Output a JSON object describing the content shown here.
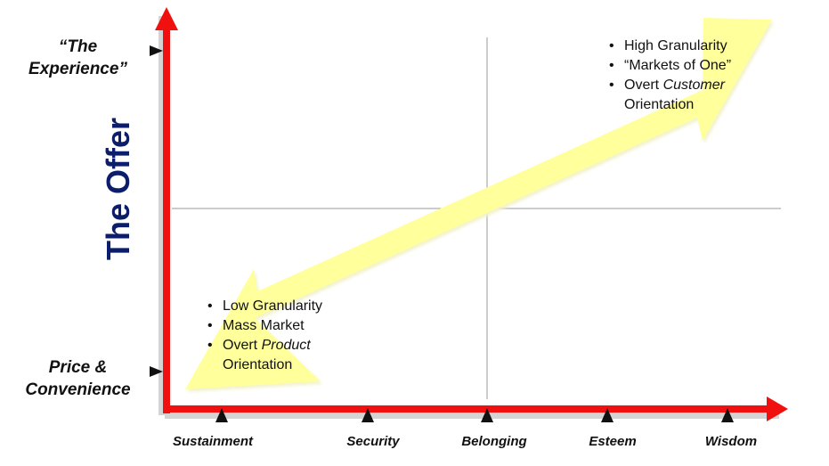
{
  "axis_title": "The Offer",
  "y_levels": {
    "top": [
      "“The",
      "Experience”"
    ],
    "bottom": [
      "Price &",
      "Convenience"
    ]
  },
  "x_levels": [
    "Sustainment",
    "Security",
    "Belonging",
    "Esteem",
    "Wisdom"
  ],
  "top_right_bullets": {
    "b1": "High Granularity",
    "b2": "“Markets of One”",
    "b3_pre": "Overt ",
    "b3_em": "Customer",
    "b3_cont": "Orientation"
  },
  "bottom_left_bullets": {
    "b1": "Low Granularity",
    "b2": "Mass Market",
    "b3_pre": "Overt ",
    "b3_em": "Product",
    "b3_cont": "Orientation"
  },
  "colors": {
    "axis": "#f01010",
    "axis_shadow": "#c8c8c8",
    "arrow_fill": "#ffff9c",
    "arrow_edge": "#f4f4c8",
    "title": "#0c1e6b",
    "quadrant_lines": "#9a9a9a",
    "marker": "#111111"
  }
}
